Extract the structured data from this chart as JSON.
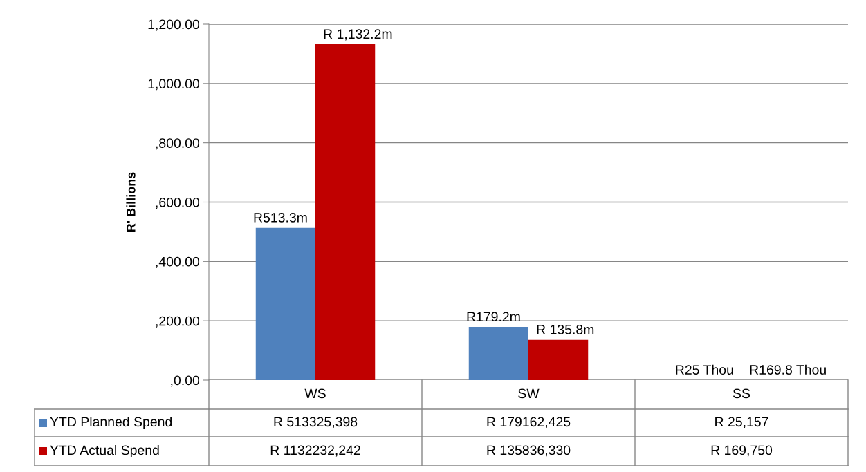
{
  "chart_data": {
    "type": "bar",
    "ylabel": "R' Billions",
    "categories": [
      "WS",
      "SW",
      "SS"
    ],
    "series": [
      {
        "name": "YTD Planned Spend",
        "color": "#4f81bd",
        "values": [
          513.3,
          179.2,
          0.025
        ],
        "value_labels": [
          "R 513325,398",
          "R 179162,425",
          "R 25,157"
        ]
      },
      {
        "name": "YTD Actual Spend",
        "color": "#c00000",
        "values": [
          1132.2,
          135.8,
          0.17
        ],
        "value_labels": [
          "R 1132232,242",
          "R 135836,330",
          "R 169,750"
        ]
      }
    ],
    "annotations": [
      {
        "text": "R513.3m",
        "x": "WS",
        "y": 513.3
      },
      {
        "text": "R 1,132.2m",
        "x": "WS",
        "y": 1132.2
      },
      {
        "text": "R179.2m",
        "x": "SW",
        "y": 179.2
      },
      {
        "text": "R 135.8m",
        "x": "SW",
        "y": 135.8
      },
      {
        "text": "R25 Thou",
        "x": "SS",
        "y": 0.025
      },
      {
        "text": "R169.8 Thou",
        "x": "SS",
        "y": 0.17
      }
    ],
    "ylim": [
      0,
      1200
    ],
    "yticks": [
      {
        "value": 0,
        "label": ",0.00"
      },
      {
        "value": 200,
        "label": ",200.00"
      },
      {
        "value": 400,
        "label": ",400.00"
      },
      {
        "value": 600,
        "label": ",600.00"
      },
      {
        "value": 800,
        "label": ",800.00"
      },
      {
        "value": 1000,
        "label": "1,000.00"
      },
      {
        "value": 1200,
        "label": "1,200.00"
      }
    ],
    "grid": "y",
    "legend": "bottom left"
  }
}
